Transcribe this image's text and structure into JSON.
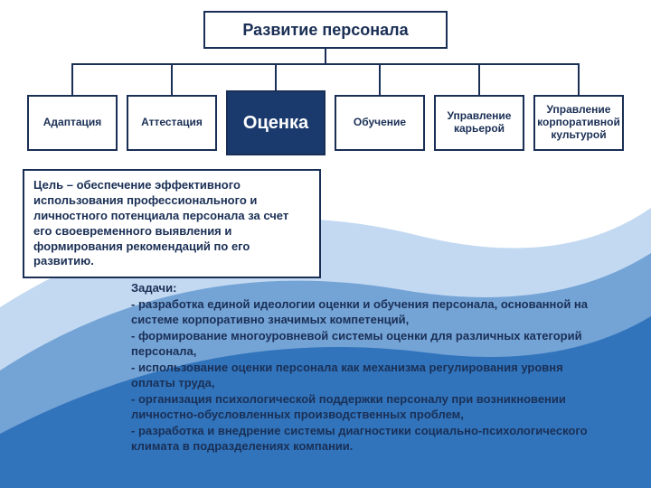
{
  "colors": {
    "primary": "#1a3a6e",
    "border": "#1a2f55",
    "text": "#1a2f55",
    "white": "#ffffff",
    "swoosh1": "#8fb9e6",
    "swoosh2": "#4a86c8",
    "swoosh3": "#1560b0"
  },
  "root": {
    "title": "Развитие персонала"
  },
  "children": [
    {
      "label": "Адаптация"
    },
    {
      "label": "Аттестация"
    },
    {
      "label": "Оценка",
      "highlighted": true
    },
    {
      "label": "Обучение"
    },
    {
      "label": "Управление карьерой"
    },
    {
      "label": "Управление корпоративной культурой"
    }
  ],
  "goal": {
    "text": "Цель – обеспечение эффективного использования профессионального и личностного потенциала персонала за счет его своевременного выявления и формирования рекомендаций по его развитию."
  },
  "tasks": {
    "heading": "Задачи:",
    "items": [
      "разработка единой идеологии  оценки и обучения персонала, основанной на системе корпоративно значимых компетенций,",
      "формирование многоуровневой системы оценки для различных категорий персонала,",
      "использование оценки персонала как механизма регулирования уровня оплаты труда,",
      "организация психологической поддержки персоналу при возникновении личностно-обусловленных производственных проблем,",
      "разработка и внедрение системы диагностики социально-психологического климата в подразделениях компании."
    ]
  },
  "diagram": {
    "type": "tree",
    "node_border_width": 2,
    "root_fontsize": 18,
    "child_fontsize": 12,
    "highlight_fontsize": 20,
    "body_fontsize": 13
  }
}
